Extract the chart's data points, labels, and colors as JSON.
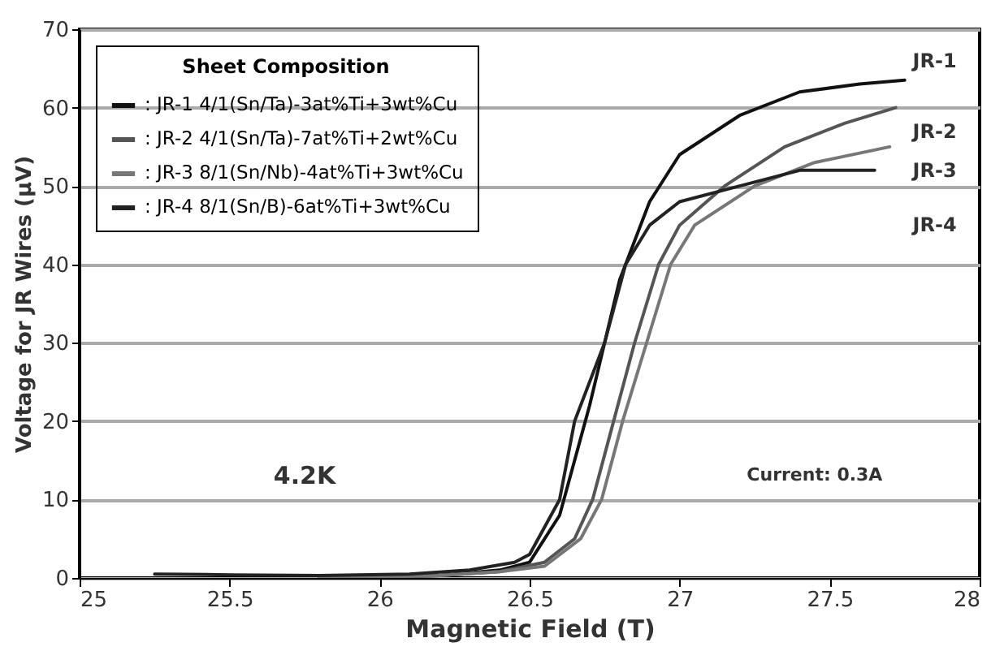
{
  "chart_data": {
    "type": "line",
    "xlabel": "Magnetic Field (T)",
    "ylabel": "Voltage for JR Wires (μV)",
    "legend_title": "Sheet Composition",
    "xlim": [
      25,
      28
    ],
    "xticks": [
      25,
      25.5,
      26,
      26.5,
      27,
      27.5,
      28
    ],
    "ylim": [
      0,
      70
    ],
    "yticks": [
      0,
      10,
      20,
      30,
      40,
      50,
      60,
      70
    ],
    "grid": "y",
    "legend": "top left",
    "line_style": "solid",
    "marker": "none",
    "series": [
      {
        "name": ": JR-1 4/1(Sn/Ta)-3at%Ti+3wt%Cu",
        "color": "#111111",
        "x": [
          25.8,
          26.2,
          26.4,
          26.5,
          26.6,
          26.7,
          26.8,
          26.9,
          27.0,
          27.2,
          27.4,
          27.6,
          27.75
        ],
        "values": [
          0,
          0.3,
          1,
          2,
          8,
          22,
          38,
          48,
          54,
          59,
          62,
          63,
          63.5
        ]
      },
      {
        "name": ": JR-2 4/1(Sn/Ta)-7at%Ti+2wt%Cu",
        "color": "#555555",
        "x": [
          25.8,
          26.2,
          26.4,
          26.55,
          26.65,
          26.71,
          26.78,
          26.85,
          26.93,
          27.0,
          27.15,
          27.35,
          27.55,
          27.72
        ],
        "values": [
          0,
          0.3,
          0.8,
          2,
          5,
          10,
          20,
          30,
          40,
          45,
          50,
          55,
          58,
          60
        ]
      },
      {
        "name": ": JR-3 8/1(Sn/Nb)-4at%Ti+3wt%Cu",
        "color": "#777777",
        "x": [
          25.8,
          26.2,
          26.4,
          26.55,
          26.67,
          26.74,
          26.81,
          26.89,
          26.97,
          27.05,
          27.25,
          27.45,
          27.7
        ],
        "values": [
          0,
          0.3,
          0.8,
          1.5,
          5,
          10,
          20,
          30,
          40,
          45,
          50,
          53,
          55
        ]
      },
      {
        "name": ": JR-4 8/1(Sn/B)-6at%Ti+3wt%Cu",
        "color": "#222222",
        "x": [
          25.25,
          25.5,
          25.8,
          26.1,
          26.3,
          26.45,
          26.5,
          26.6,
          26.65,
          26.75,
          26.82,
          26.9,
          27.0,
          27.2,
          27.4,
          27.65
        ],
        "values": [
          0.5,
          0.4,
          0.3,
          0.5,
          1,
          2,
          3,
          10,
          20,
          30,
          40,
          45,
          48,
          50,
          52,
          52
        ]
      }
    ],
    "annotations": [
      "JR-1",
      "JR-2",
      "JR-3",
      "JR-4",
      "4.2K",
      "Current: 0.3A"
    ]
  }
}
